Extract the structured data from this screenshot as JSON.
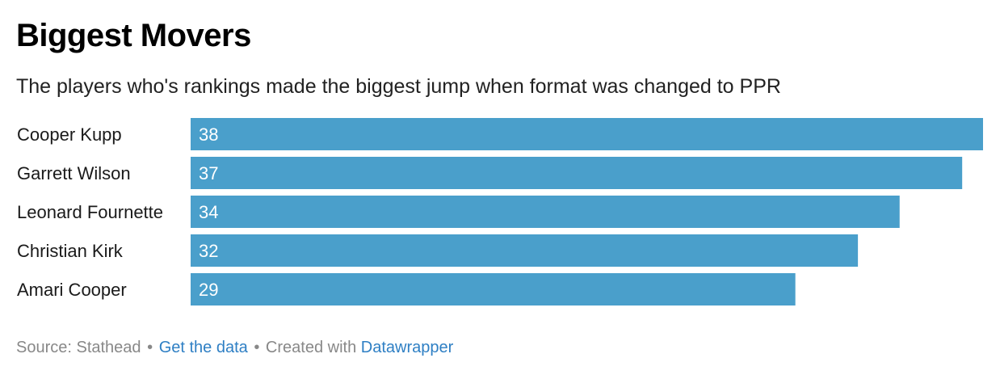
{
  "chart_data": {
    "type": "bar",
    "orientation": "horizontal",
    "title": "Biggest Movers",
    "subtitle": "The players who's rankings made the biggest jump when format was changed to PPR",
    "categories": [
      "Cooper Kupp",
      "Garrett Wilson",
      "Leonard Fournette",
      "Christian Kirk",
      "Amari Cooper"
    ],
    "values": [
      38,
      37,
      34,
      32,
      29
    ],
    "xlim": [
      0,
      38
    ],
    "bar_color": "#4a9fcb",
    "label_color": "#ffffff"
  },
  "footer": {
    "source": "Source: Stathead",
    "separator": "•",
    "get_data": "Get the data",
    "created_with": "Created with",
    "tool": "Datawrapper"
  }
}
